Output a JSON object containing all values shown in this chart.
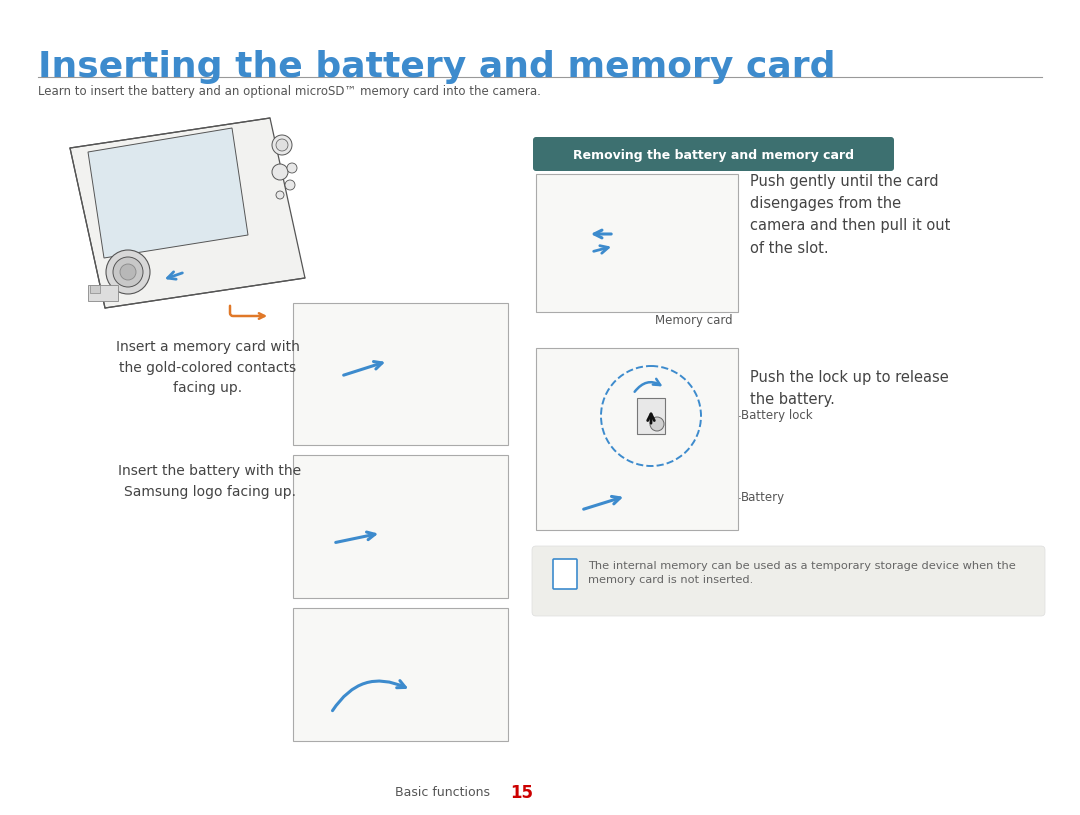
{
  "title": "Inserting the battery and memory card",
  "subtitle": "Learn to insert the battery and an optional microSD™ memory card into the camera.",
  "title_color": "#3d8bcd",
  "subtitle_color": "#555555",
  "bg_color": "#ffffff",
  "separator_color": "#999999",
  "footer_label": "Basic functions",
  "footer_number": "15",
  "footer_label_color": "#555555",
  "footer_number_color": "#cc0000",
  "section_header": "Removing the battery and memory card",
  "section_header_bg": "#3d7070",
  "section_header_text_color": "#ffffff",
  "text_left1": "Insert a memory card with\nthe gold-colored contacts\nfacing up.",
  "text_left2": "Insert the battery with the\nSamsung logo facing up.",
  "text_right1": "Push gently until the card\ndisengages from the\ncamera and then pull it out\nof the slot.",
  "text_right2": "Push the lock up to release\nthe battery.",
  "label_memory_card": "Memory card",
  "label_battery_lock": "Battery lock",
  "label_battery": "Battery",
  "note_text": "The internal memory can be used as a temporary storage device when the\nmemory card is not inserted.",
  "note_bg": "#eeeeea",
  "note_border": "#dddddd",
  "arrow_orange": "#e07828",
  "arrow_blue": "#3d8bcd",
  "sketch_line": "#555555",
  "sketch_light": "#cccccc",
  "sketch_fill": "#f2f2f0",
  "dark_text": "#444444"
}
